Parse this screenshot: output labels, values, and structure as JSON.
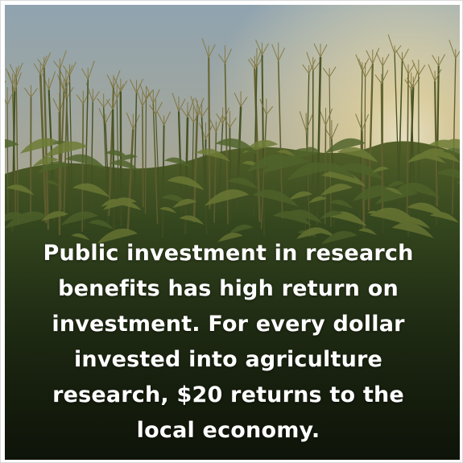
{
  "image": {
    "subject": "cornfield at sunset",
    "caption_lines": [
      "Public investment in research",
      "benefits has high return on",
      "investment. For every dollar",
      "invested into agriculture",
      "research, $20 returns to the",
      "local economy."
    ]
  },
  "colors": {
    "sky_top": "#8fa3b0",
    "sky_glow": "#f3e6b8",
    "field_dark": "#1f2a14",
    "field_mid": "#3f5524",
    "caption_text": "#ffffff"
  }
}
